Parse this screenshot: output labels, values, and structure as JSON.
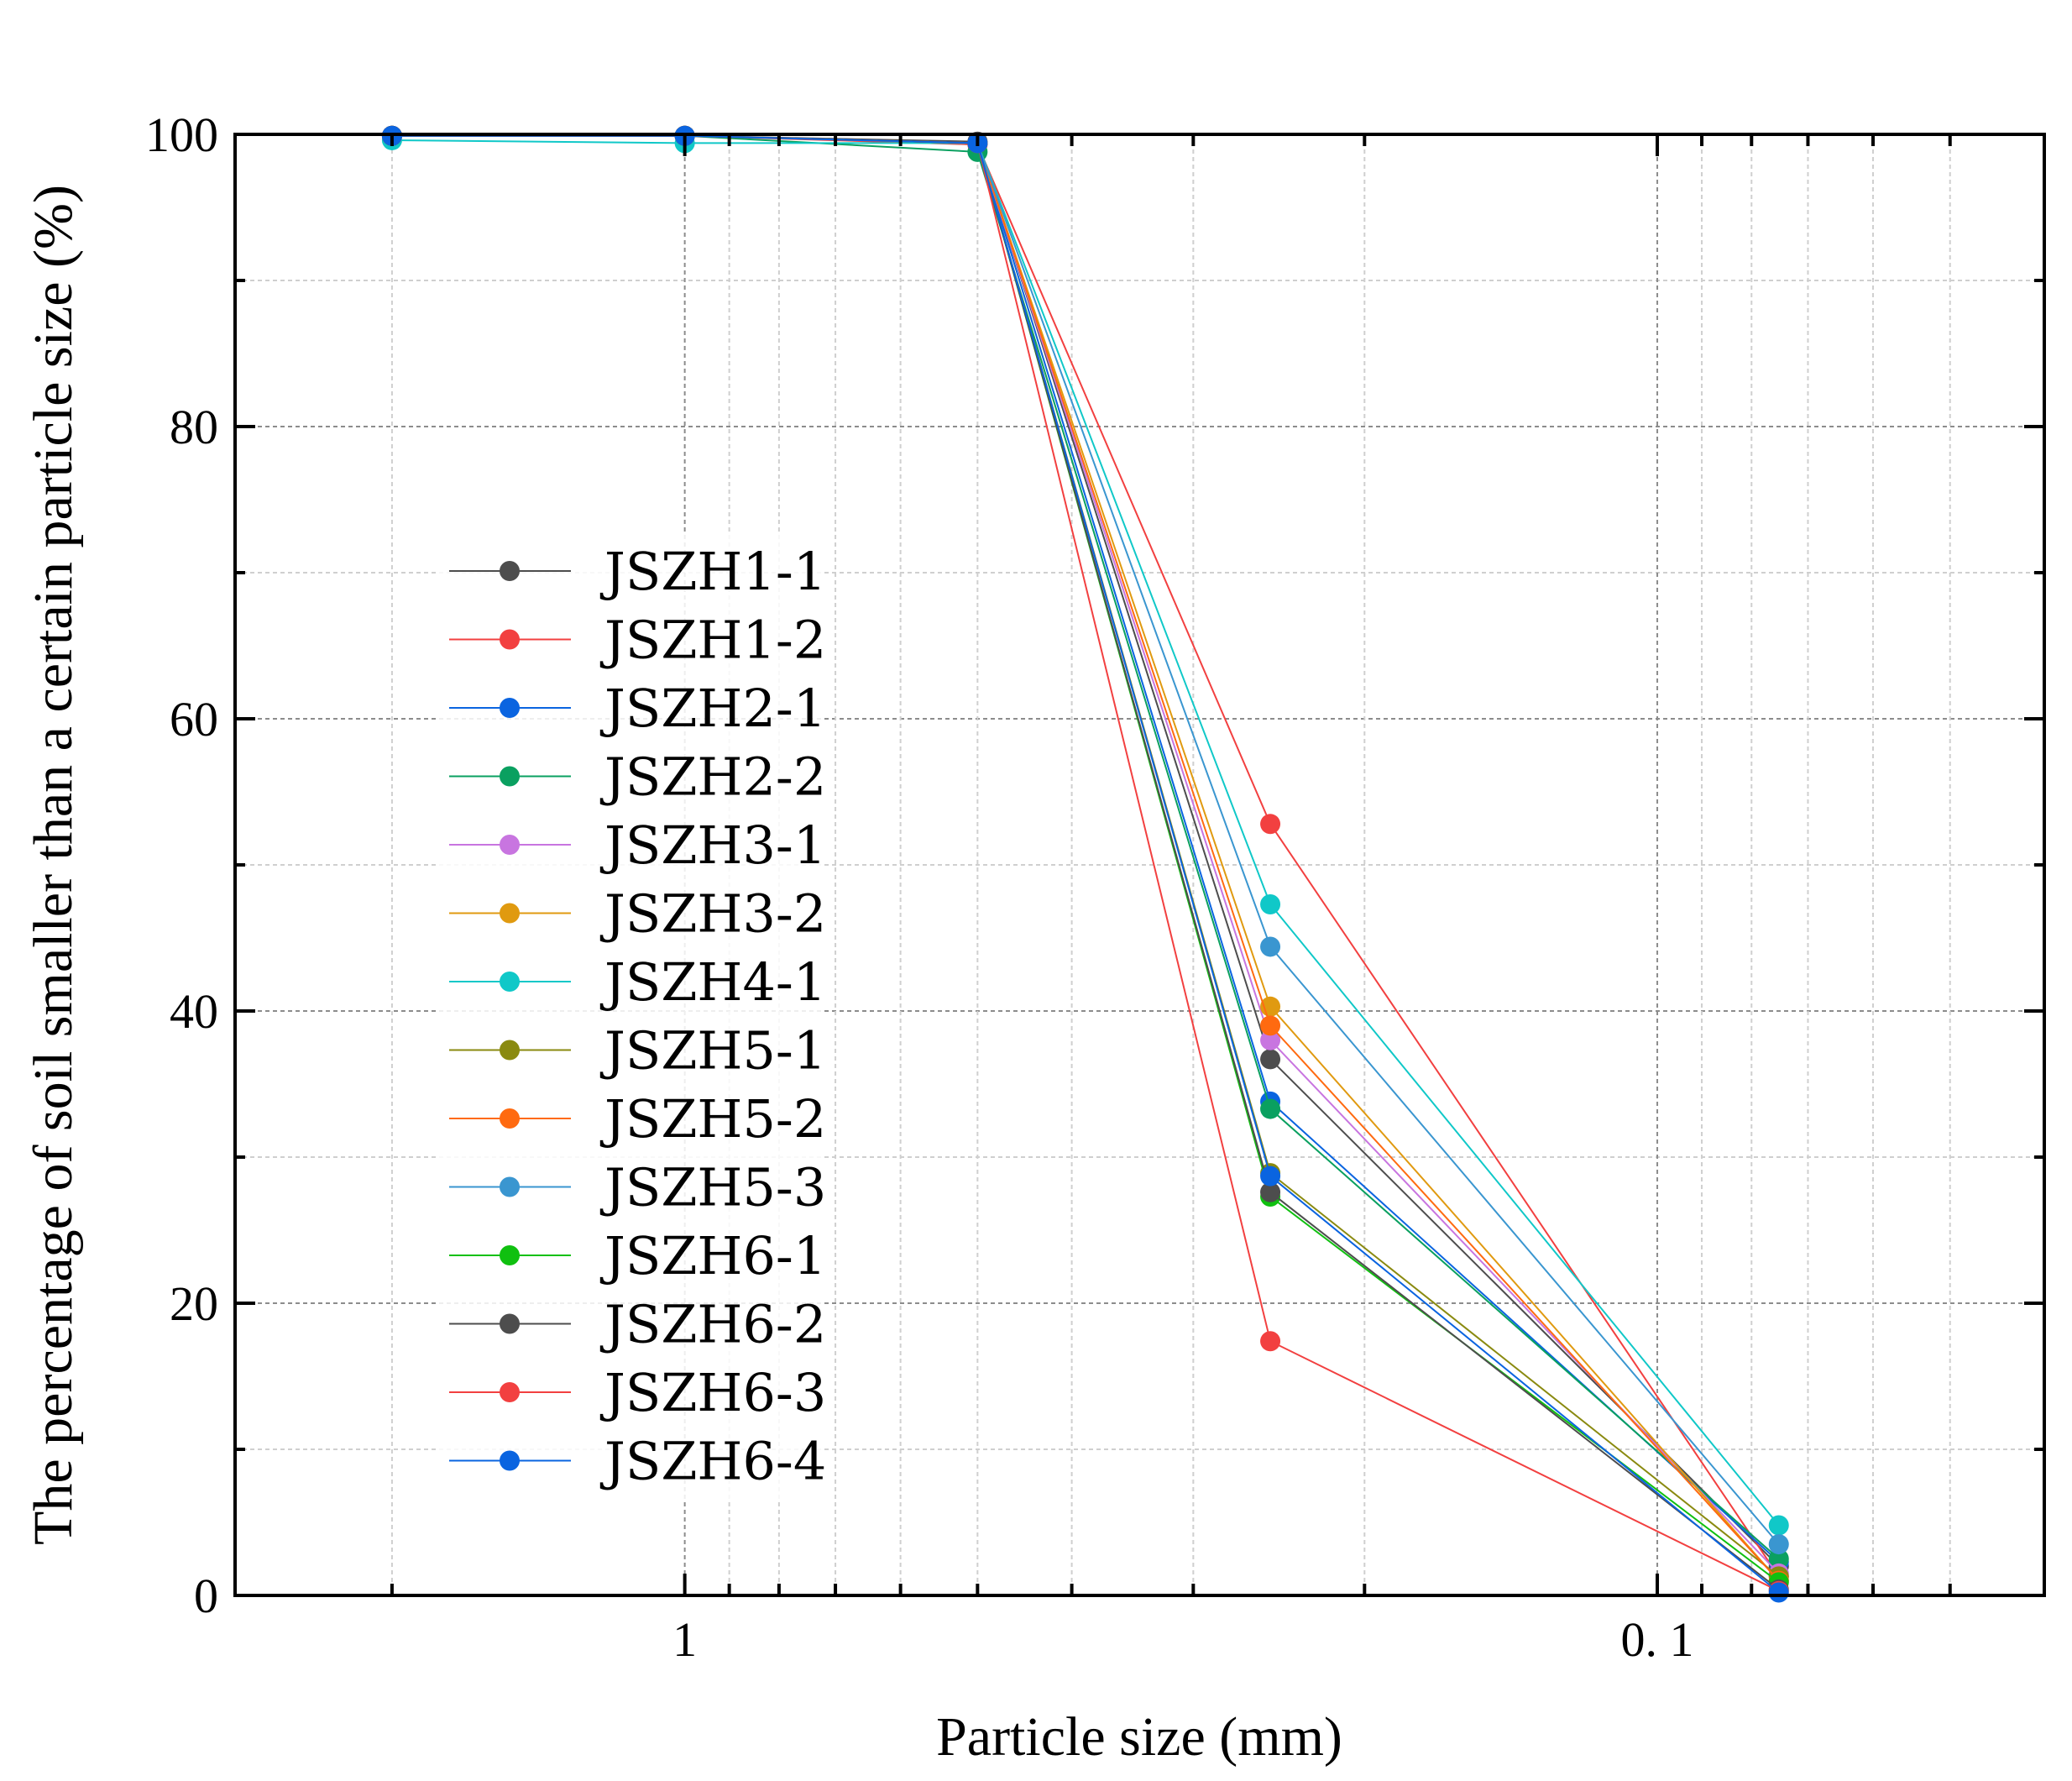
{
  "chart_data": {
    "type": "line",
    "title": "",
    "xlabel": "Particle size (mm)",
    "ylabel": "The percentage of soil smaller than a certain particle size (%)",
    "x_scale": "log-reversed",
    "xlim": [
      2.9,
      0.04
    ],
    "ylim": [
      0,
      100
    ],
    "x_ticks": [
      {
        "value": 1,
        "label": "1"
      },
      {
        "value": 0.1,
        "label": "0. 1"
      }
    ],
    "y_ticks": [
      {
        "value": 0,
        "label": "0"
      },
      {
        "value": 20,
        "label": "20"
      },
      {
        "value": 40,
        "label": "40"
      },
      {
        "value": 60,
        "label": "60"
      },
      {
        "value": 80,
        "label": "80"
      },
      {
        "value": 100,
        "label": "100"
      }
    ],
    "grid": true,
    "legend_position": "center-left",
    "x": [
      2,
      1,
      0.5,
      0.25,
      0.075
    ],
    "series": [
      {
        "name": "JSZH1-1",
        "color": "#4d4d4d",
        "values": [
          99.9,
          99.9,
          99.5,
          36.7,
          2.0
        ]
      },
      {
        "name": "JSZH1-2",
        "color": "#f24040",
        "values": [
          99.9,
          99.9,
          99.3,
          52.8,
          1.3
        ]
      },
      {
        "name": "JSZH2-1",
        "color": "#0a64e0",
        "values": [
          99.9,
          99.9,
          99.4,
          33.8,
          2.3
        ]
      },
      {
        "name": "JSZH2-2",
        "color": "#0aa060",
        "values": [
          99.9,
          99.9,
          98.8,
          33.3,
          2.5
        ]
      },
      {
        "name": "JSZH3-1",
        "color": "#c875e0",
        "values": [
          99.9,
          99.9,
          99.4,
          38.0,
          1.5
        ]
      },
      {
        "name": "JSZH3-2",
        "color": "#e09a10",
        "values": [
          99.9,
          99.9,
          99.4,
          40.3,
          1.0
        ]
      },
      {
        "name": "JSZH4-1",
        "color": "#10c8c8",
        "values": [
          99.6,
          99.4,
          99.4,
          47.3,
          4.8
        ]
      },
      {
        "name": "JSZH5-1",
        "color": "#8a8a10",
        "values": [
          99.9,
          99.9,
          99.4,
          28.9,
          1.3
        ]
      },
      {
        "name": "JSZH5-2",
        "color": "#ff6a10",
        "values": [
          99.9,
          99.9,
          99.4,
          39.0,
          1.0
        ]
      },
      {
        "name": "JSZH5-3",
        "color": "#3a96d0",
        "values": [
          99.9,
          99.9,
          99.4,
          44.4,
          3.5
        ]
      },
      {
        "name": "JSZH6-1",
        "color": "#10c010",
        "values": [
          99.9,
          99.9,
          99.4,
          27.3,
          0.9
        ]
      },
      {
        "name": "JSZH6-2",
        "color": "#4d4d4d",
        "values": [
          99.9,
          99.9,
          99.4,
          27.6,
          0.4
        ]
      },
      {
        "name": "JSZH6-3",
        "color": "#f24040",
        "values": [
          99.9,
          99.9,
          99.4,
          17.4,
          0.3
        ]
      },
      {
        "name": "JSZH6-4",
        "color": "#0a64e0",
        "values": [
          99.9,
          99.9,
          99.4,
          28.7,
          0.2
        ]
      }
    ]
  }
}
